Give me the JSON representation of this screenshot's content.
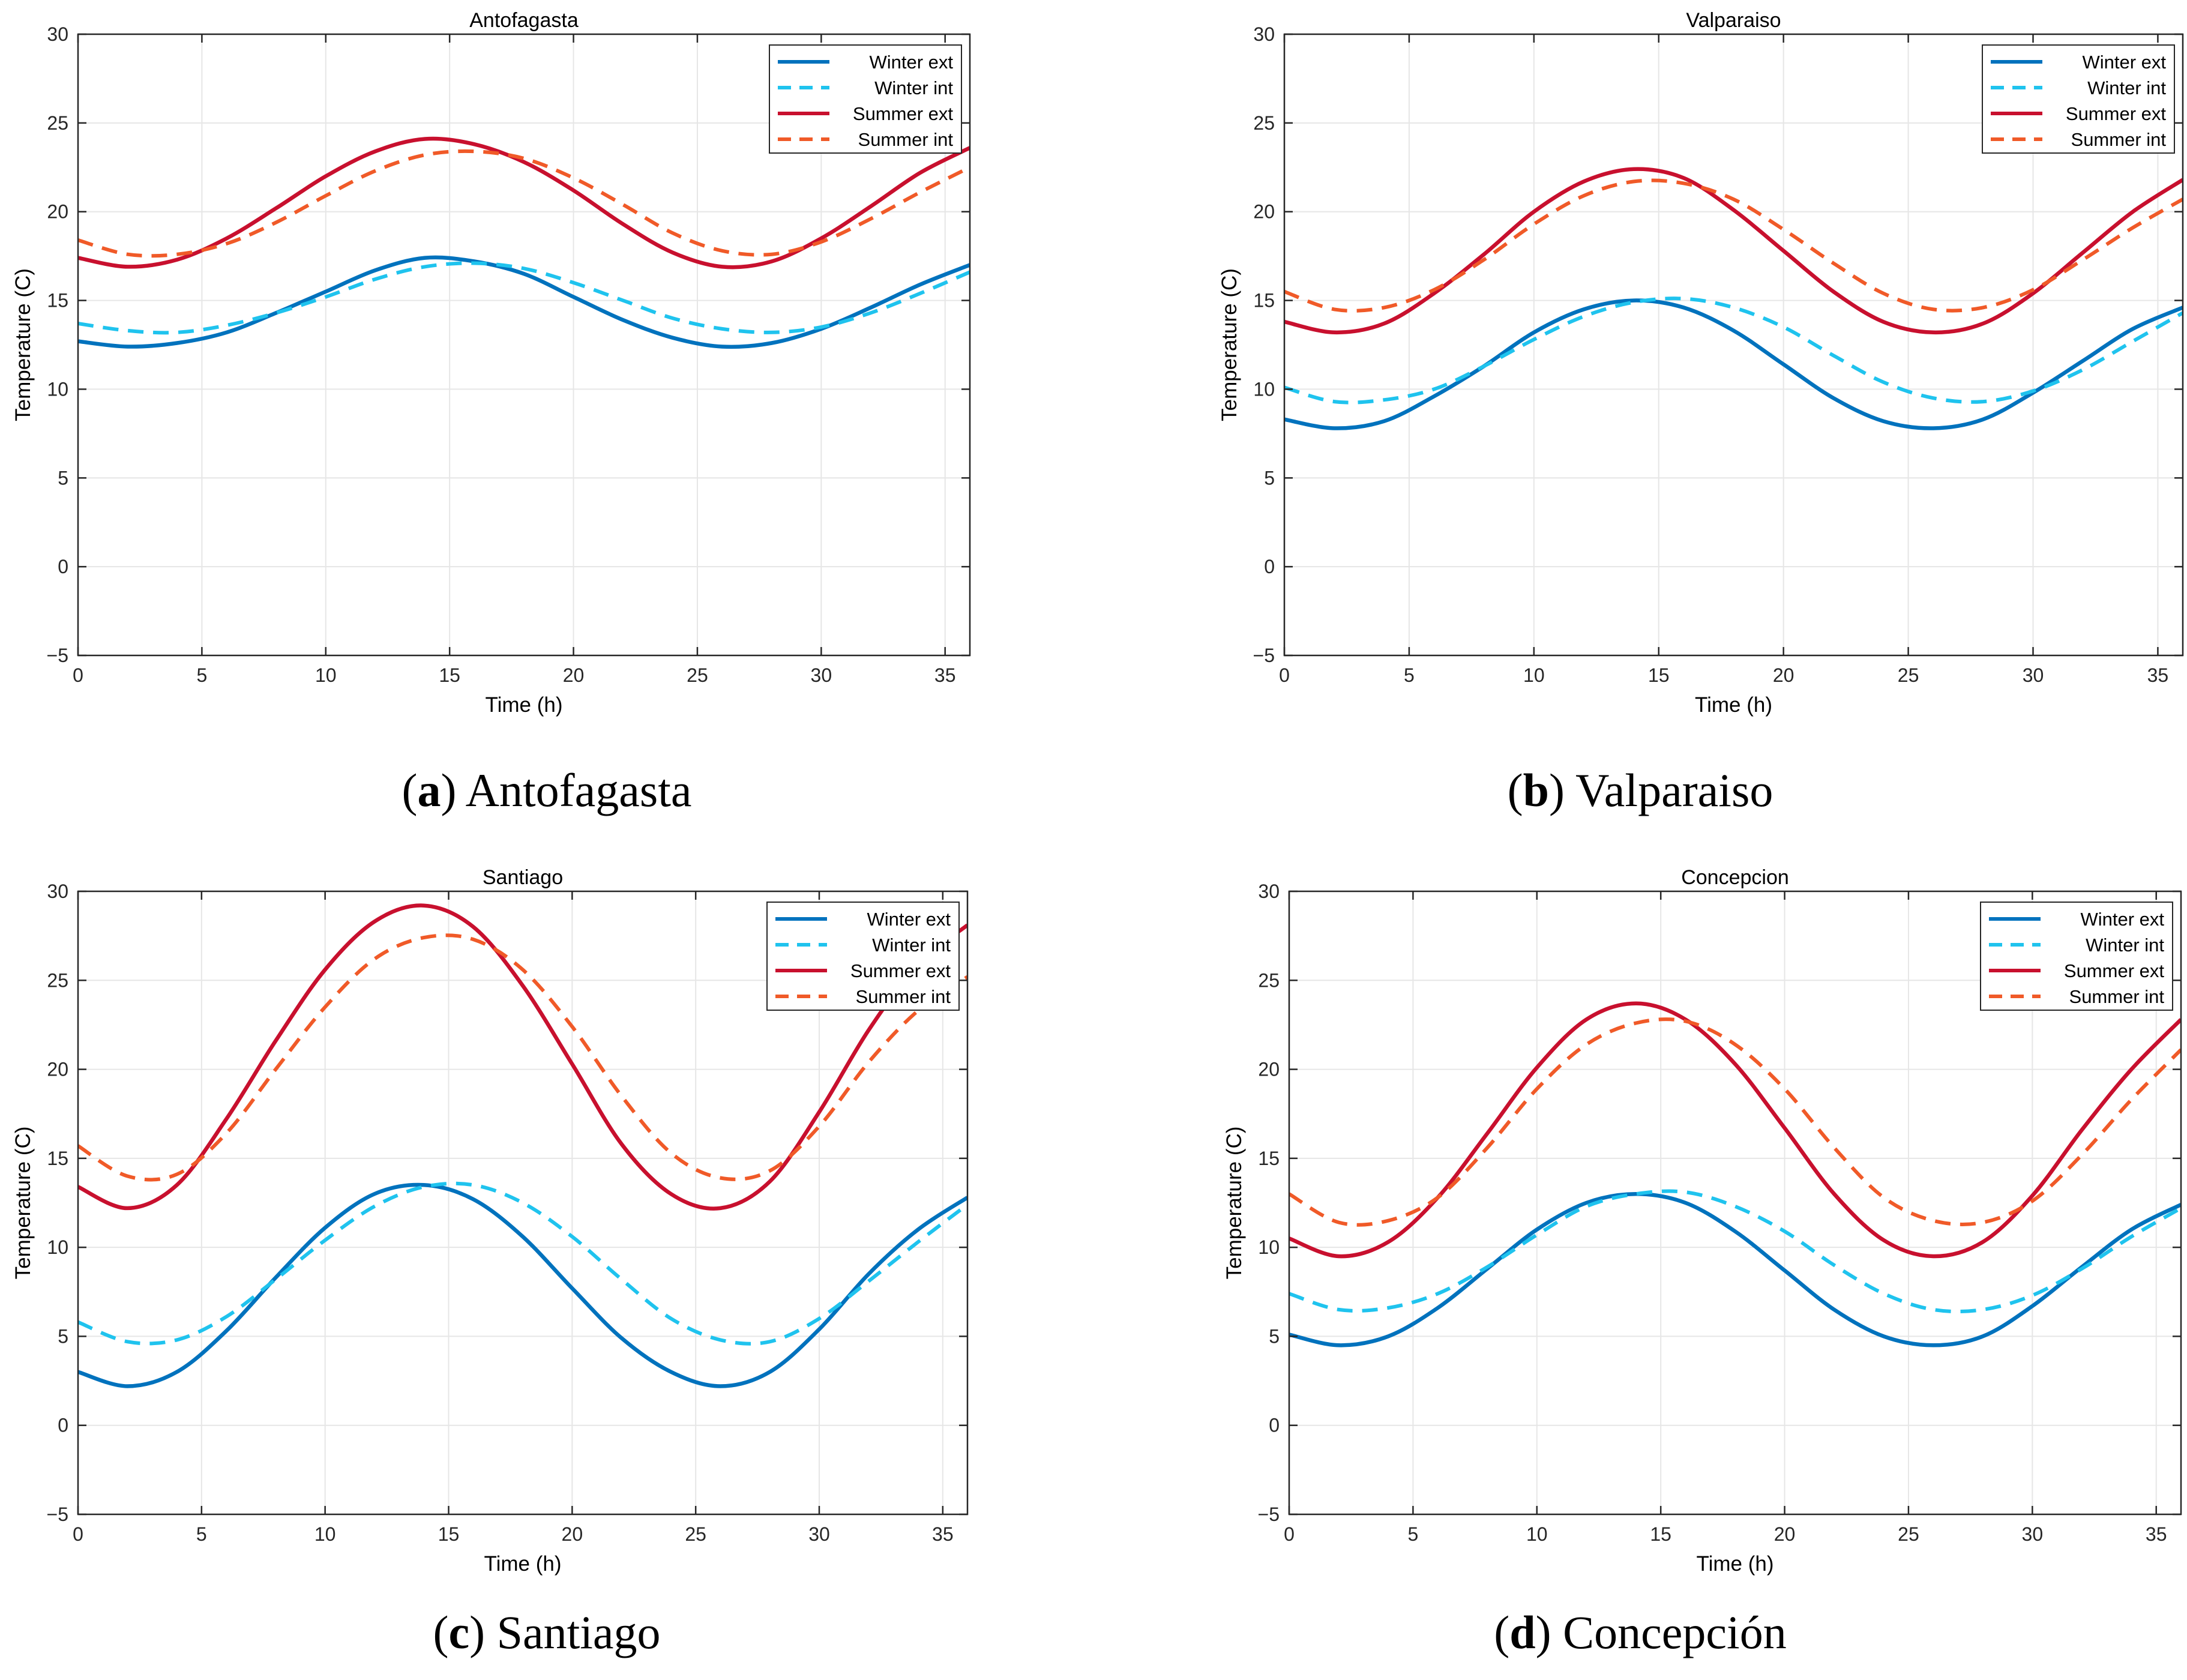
{
  "colors": {
    "winter_ext": "#0072BD",
    "winter_int": "#1FC3EE",
    "summer_ext": "#C8102E",
    "summer_int": "#F05A28",
    "grid": "#E6E6E6",
    "axis": "#262626"
  },
  "legend": [
    "Winter ext",
    "Winter int",
    "Summer ext",
    "Summer int"
  ],
  "chart_data": [
    {
      "type": "line",
      "panel_letter": "a",
      "caption_name": "Antofagasta",
      "title": "Antofagasta",
      "xlabel": "Time (h)",
      "ylabel": "Temperature (C)",
      "xlim": [
        0,
        36
      ],
      "ylim": [
        -5,
        30
      ],
      "xticks": [
        0,
        5,
        10,
        15,
        20,
        25,
        30,
        35
      ],
      "yticks": [
        -5,
        0,
        5,
        10,
        15,
        20,
        25,
        30
      ],
      "ytick_labels": [
        "−5",
        "0",
        "5",
        "10",
        "15",
        "20",
        "25",
        "30"
      ],
      "grid": true,
      "legend_position": "top-right",
      "x": [
        0,
        2,
        4,
        6,
        8,
        10,
        12,
        14,
        16,
        18,
        20,
        22,
        24,
        26,
        28,
        30,
        32,
        34,
        36
      ],
      "series": [
        {
          "name": "Winter ext",
          "style": "solid",
          "values": [
            12.7,
            12.4,
            12.6,
            13.2,
            14.3,
            15.5,
            16.7,
            17.4,
            17.2,
            16.5,
            15.2,
            13.9,
            12.9,
            12.4,
            12.6,
            13.4,
            14.6,
            15.9,
            17.0
          ]
        },
        {
          "name": "Winter int",
          "style": "dashed",
          "values": [
            13.7,
            13.3,
            13.2,
            13.6,
            14.3,
            15.2,
            16.2,
            16.9,
            17.1,
            16.8,
            16.0,
            15.0,
            14.0,
            13.4,
            13.2,
            13.5,
            14.3,
            15.4,
            16.6
          ]
        },
        {
          "name": "Summer ext",
          "style": "solid",
          "values": [
            17.4,
            16.9,
            17.3,
            18.5,
            20.2,
            22.0,
            23.4,
            24.1,
            23.8,
            22.8,
            21.2,
            19.3,
            17.7,
            16.9,
            17.2,
            18.5,
            20.3,
            22.2,
            23.6
          ]
        },
        {
          "name": "Summer int",
          "style": "dashed",
          "values": [
            18.4,
            17.6,
            17.6,
            18.2,
            19.4,
            20.9,
            22.3,
            23.2,
            23.4,
            23.0,
            21.9,
            20.4,
            18.8,
            17.8,
            17.6,
            18.3,
            19.6,
            21.1,
            22.5
          ]
        }
      ]
    },
    {
      "type": "line",
      "panel_letter": "b",
      "caption_name": "Valparaiso",
      "title": "Valparaiso",
      "xlabel": "Time (h)",
      "ylabel": "Temperature (C)",
      "xlim": [
        0,
        36
      ],
      "ylim": [
        -5,
        30
      ],
      "xticks": [
        0,
        5,
        10,
        15,
        20,
        25,
        30,
        35
      ],
      "yticks": [
        -5,
        0,
        5,
        10,
        15,
        20,
        25,
        30
      ],
      "ytick_labels": [
        "−5",
        "0",
        "5",
        "10",
        "15",
        "20",
        "25",
        "30"
      ],
      "grid": true,
      "legend_position": "top-right",
      "x": [
        0,
        2,
        4,
        6,
        8,
        10,
        12,
        14,
        16,
        18,
        20,
        22,
        24,
        26,
        28,
        30,
        32,
        34,
        36
      ],
      "series": [
        {
          "name": "Winter ext",
          "style": "solid",
          "values": [
            8.3,
            7.8,
            8.2,
            9.6,
            11.3,
            13.2,
            14.5,
            15.0,
            14.6,
            13.3,
            11.4,
            9.5,
            8.2,
            7.8,
            8.3,
            9.8,
            11.6,
            13.4,
            14.6
          ]
        },
        {
          "name": "Winter int",
          "style": "dashed",
          "values": [
            10.1,
            9.3,
            9.4,
            10.0,
            11.3,
            12.8,
            14.1,
            14.9,
            15.1,
            14.6,
            13.5,
            11.9,
            10.4,
            9.5,
            9.3,
            9.9,
            11.1,
            12.7,
            14.3
          ]
        },
        {
          "name": "Summer ext",
          "style": "solid",
          "values": [
            13.8,
            13.2,
            13.7,
            15.4,
            17.6,
            20.0,
            21.7,
            22.4,
            21.9,
            20.1,
            17.8,
            15.5,
            13.8,
            13.2,
            13.7,
            15.4,
            17.7,
            20.0,
            21.8
          ]
        },
        {
          "name": "Summer int",
          "style": "dashed",
          "values": [
            15.5,
            14.5,
            14.6,
            15.6,
            17.3,
            19.3,
            20.9,
            21.7,
            21.6,
            20.7,
            19.0,
            17.1,
            15.4,
            14.5,
            14.6,
            15.6,
            17.3,
            19.1,
            20.7
          ]
        }
      ]
    },
    {
      "type": "line",
      "panel_letter": "c",
      "caption_name": "Santiago",
      "title": "Santiago",
      "xlabel": "Time (h)",
      "ylabel": "Temperature (C)",
      "xlim": [
        0,
        36
      ],
      "ylim": [
        -5,
        30
      ],
      "xticks": [
        0,
        5,
        10,
        15,
        20,
        25,
        30,
        35
      ],
      "yticks": [
        -5,
        0,
        5,
        10,
        15,
        20,
        25,
        30
      ],
      "ytick_labels": [
        "−5",
        "0",
        "5",
        "10",
        "15",
        "20",
        "25",
        "30"
      ],
      "grid": true,
      "legend_position": "top-right",
      "x": [
        0,
        2,
        4,
        6,
        8,
        10,
        12,
        14,
        16,
        18,
        20,
        22,
        24,
        26,
        28,
        30,
        32,
        34,
        36
      ],
      "series": [
        {
          "name": "Winter ext",
          "style": "solid",
          "values": [
            3.0,
            2.2,
            3.0,
            5.3,
            8.3,
            11.1,
            13.0,
            13.5,
            12.7,
            10.6,
            7.7,
            4.9,
            3.0,
            2.2,
            3.0,
            5.4,
            8.5,
            11.0,
            12.8
          ]
        },
        {
          "name": "Winter int",
          "style": "dashed",
          "values": [
            5.8,
            4.7,
            4.8,
            6.1,
            8.2,
            10.4,
            12.3,
            13.4,
            13.5,
            12.5,
            10.6,
            8.2,
            6.0,
            4.8,
            4.7,
            6.0,
            8.1,
            10.3,
            12.4
          ]
        },
        {
          "name": "Summer ext",
          "style": "solid",
          "values": [
            13.4,
            12.2,
            13.5,
            17.2,
            21.6,
            25.6,
            28.3,
            29.2,
            28.0,
            24.7,
            20.3,
            15.8,
            13.0,
            12.2,
            13.7,
            17.6,
            22.2,
            25.9,
            28.1
          ]
        },
        {
          "name": "Summer int",
          "style": "dashed",
          "values": [
            15.7,
            14.0,
            14.1,
            16.4,
            20.0,
            23.5,
            26.2,
            27.4,
            27.3,
            25.6,
            22.4,
            18.5,
            15.3,
            13.9,
            14.3,
            16.8,
            20.4,
            23.3,
            25.2
          ]
        }
      ]
    },
    {
      "type": "line",
      "panel_letter": "d",
      "caption_name": "Concepción",
      "title": "Concepcion",
      "xlabel": "Time (h)",
      "ylabel": "Temperature (C)",
      "xlim": [
        0,
        36
      ],
      "ylim": [
        -5,
        30
      ],
      "xticks": [
        0,
        5,
        10,
        15,
        20,
        25,
        30,
        35
      ],
      "yticks": [
        -5,
        0,
        5,
        10,
        15,
        20,
        25,
        30
      ],
      "ytick_labels": [
        "−5",
        "0",
        "5",
        "10",
        "15",
        "20",
        "25",
        "30"
      ],
      "grid": true,
      "legend_position": "top-right",
      "x": [
        0,
        2,
        4,
        6,
        8,
        10,
        12,
        14,
        16,
        18,
        20,
        22,
        24,
        26,
        28,
        30,
        32,
        34,
        36
      ],
      "series": [
        {
          "name": "Winter ext",
          "style": "solid",
          "values": [
            5.1,
            4.5,
            5.0,
            6.6,
            8.8,
            11.0,
            12.5,
            13.0,
            12.5,
            10.9,
            8.7,
            6.5,
            5.0,
            4.5,
            5.0,
            6.7,
            8.9,
            11.0,
            12.4
          ]
        },
        {
          "name": "Winter int",
          "style": "dashed",
          "values": [
            7.4,
            6.5,
            6.6,
            7.4,
            8.9,
            10.7,
            12.3,
            13.0,
            13.1,
            12.3,
            10.9,
            9.0,
            7.4,
            6.5,
            6.5,
            7.3,
            8.8,
            10.6,
            12.2
          ]
        },
        {
          "name": "Summer ext",
          "style": "solid",
          "values": [
            10.5,
            9.5,
            10.3,
            12.8,
            16.4,
            20.1,
            22.8,
            23.7,
            22.8,
            20.3,
            16.7,
            13.0,
            10.4,
            9.5,
            10.3,
            12.9,
            16.6,
            20.0,
            22.8
          ]
        },
        {
          "name": "Summer int",
          "style": "dashed",
          "values": [
            13.0,
            11.4,
            11.5,
            12.8,
            15.6,
            18.9,
            21.4,
            22.6,
            22.7,
            21.4,
            18.9,
            15.6,
            12.8,
            11.5,
            11.4,
            12.6,
            15.2,
            18.3,
            21.1
          ]
        }
      ]
    }
  ]
}
